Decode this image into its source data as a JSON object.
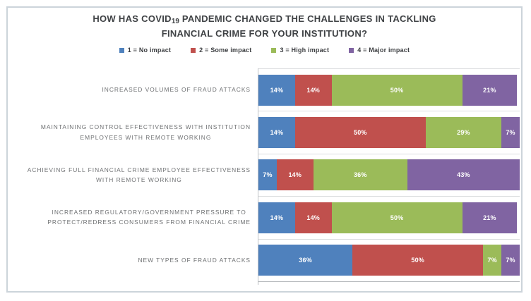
{
  "title": {
    "prefix": "HOW HAS COVID",
    "covid_number": "19",
    "suffix": " PANDEMIC CHANGED THE CHALLENGES IN TACKLING FINANCIAL CRIME FOR YOUR INSTITUTION?",
    "full": "HOW HAS COVID19 PANDEMIC CHANGED THE CHALLENGES IN TACKLING FINANCIAL CRIME FOR YOUR INSTITUTION?",
    "color": "#3f4245"
  },
  "legend": {
    "position": "top-center",
    "items": [
      {
        "label": "1 = No impact",
        "color": "#4F81BD"
      },
      {
        "label": "2 = Some impact",
        "color": "#C0504D"
      },
      {
        "label": "3 = High impact",
        "color": "#9BBB59"
      },
      {
        "label": "4 = Major impact",
        "color": "#8064A2"
      }
    ]
  },
  "chart_data": {
    "type": "bar",
    "orientation": "horizontal",
    "stacked": true,
    "unit": "%",
    "title": "HOW HAS COVID19 PANDEMIC CHANGED THE CHALLENGES IN TACKLING FINANCIAL CRIME FOR YOUR INSTITUTION?",
    "xlabel": "",
    "ylabel": "",
    "xlim": [
      0,
      100
    ],
    "grid": "category-separators-and-left-axis",
    "value_label_style": "white percent labels centered inside segments",
    "categories": [
      "INCREASED VOLUMES OF FRAUD ATTACKS",
      "MAINTAINING CONTROL EFFECTIVENESS WITH INSTITUTION\nEMPLOYEES WITH REMOTE WORKING",
      "ACHIEVING FULL FINANCIAL CRIME EMPLOYEE EFFECTIVENESS\nWITH REMOTE WORKING",
      "INCREASED REGULATORY/GOVERNMENT PRESSURE TO\nPROTECT/REDRESS CONSUMERS FROM FINANCIAL CRIME",
      "NEW TYPES OF FRAUD ATTACKS"
    ],
    "series": [
      {
        "name": "1 = No impact",
        "color": "#4F81BD",
        "values": [
          14,
          14,
          7,
          14,
          36
        ]
      },
      {
        "name": "2 = Some impact",
        "color": "#C0504D",
        "values": [
          14,
          50,
          14,
          14,
          50
        ]
      },
      {
        "name": "3 = High impact",
        "color": "#9BBB59",
        "values": [
          50,
          29,
          36,
          50,
          7
        ]
      },
      {
        "name": "4 = Major impact",
        "color": "#8064A2",
        "values": [
          21,
          7,
          43,
          21,
          7
        ]
      }
    ],
    "rows_as_read": [
      {
        "category": "INCREASED VOLUMES OF FRAUD ATTACKS",
        "values": [
          14,
          14,
          50,
          21
        ]
      },
      {
        "category": "MAINTAINING CONTROL EFFECTIVENESS WITH INSTITUTION EMPLOYEES WITH REMOTE WORKING",
        "values": [
          14,
          50,
          29,
          7
        ]
      },
      {
        "category": "ACHIEVING FULL FINANCIAL CRIME EMPLOYEE EFFECTIVENESS WITH REMOTE WORKING",
        "values": [
          7,
          14,
          36,
          43
        ]
      },
      {
        "category": "INCREASED REGULATORY/GOVERNMENT PRESSURE TO PROTECT/REDRESS CONSUMERS FROM FINANCIAL CRIME",
        "values": [
          14,
          14,
          50,
          21
        ]
      },
      {
        "category": "NEW TYPES OF FRAUD ATTACKS",
        "values": [
          36,
          50,
          7,
          7
        ]
      }
    ]
  },
  "frame": {
    "border_color": "#ccd4da",
    "background": "#ffffff"
  }
}
